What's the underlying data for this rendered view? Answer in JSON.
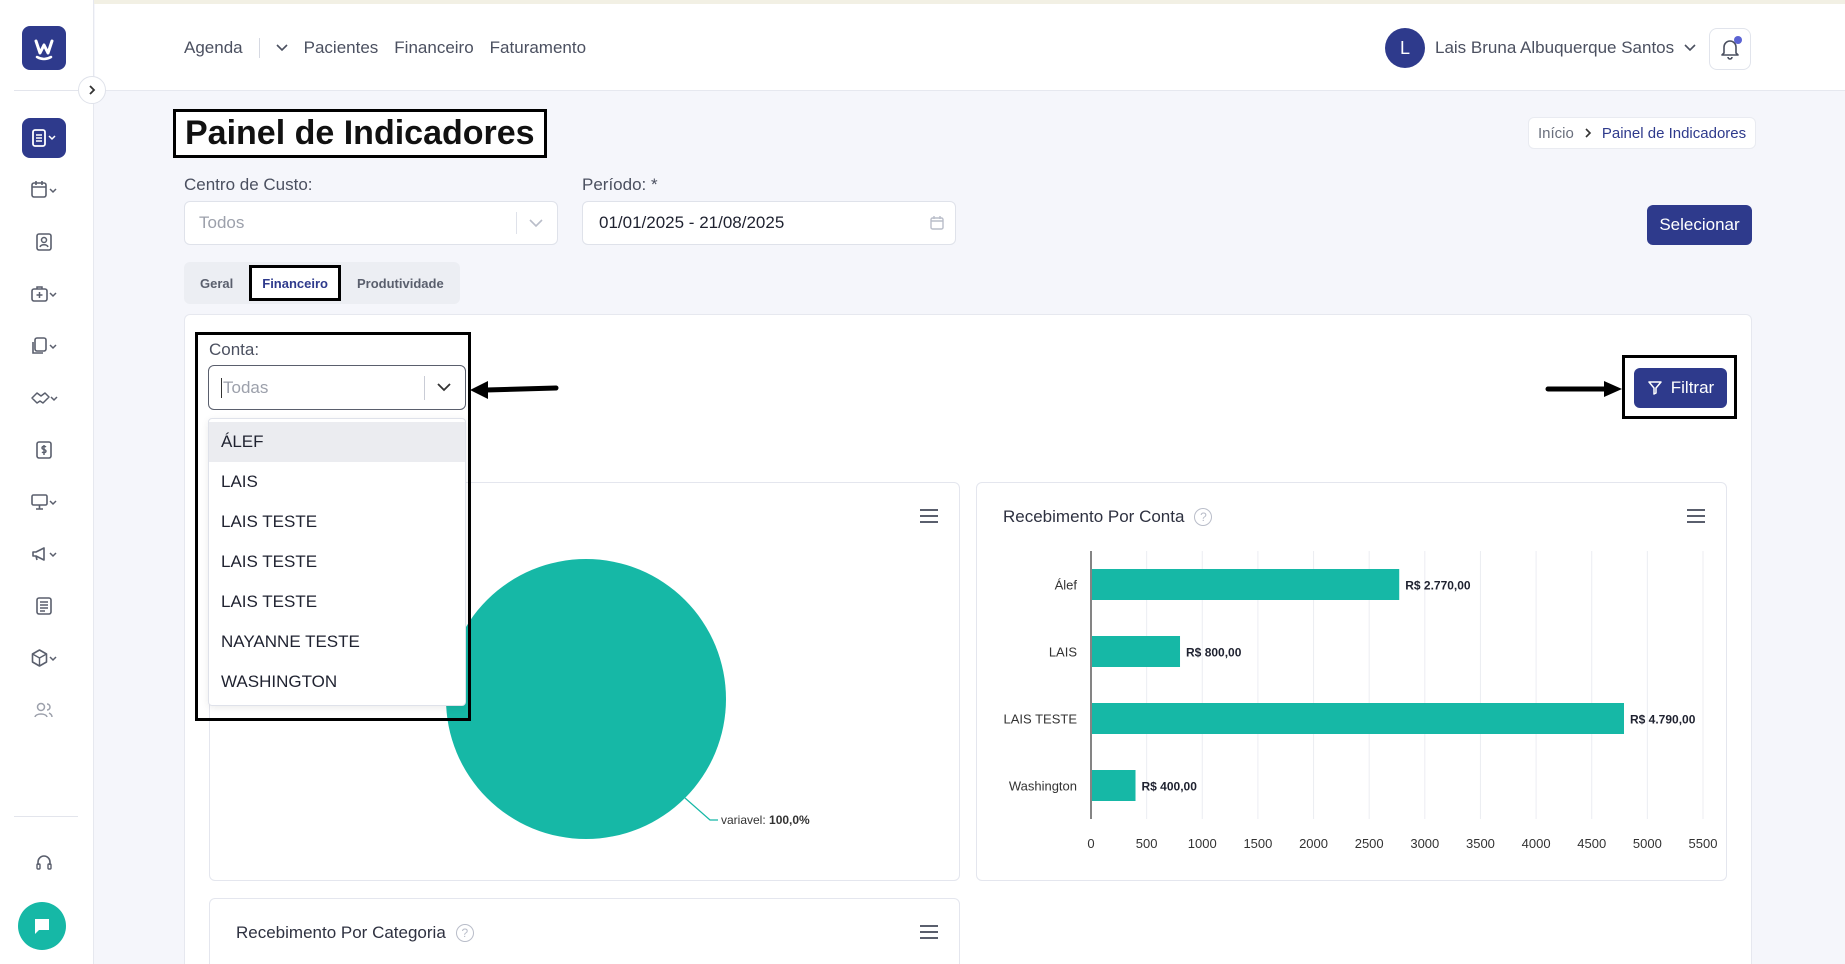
{
  "header": {
    "nav": [
      "Agenda",
      "Pacientes",
      "Financeiro",
      "Faturamento"
    ],
    "user_initial": "L",
    "user_name": "Lais Bruna Albuquerque Santos"
  },
  "page": {
    "title": "Painel de Indicadores",
    "breadcrumb": [
      "Início",
      "Painel de Indicadores"
    ]
  },
  "filters": {
    "cost_center_label": "Centro de Custo:",
    "cost_center_value": "Todos",
    "period_label": "Período: *",
    "period_value": "01/01/2025 - 21/08/2025",
    "select_button": "Selecionar"
  },
  "tabs": [
    "Geral",
    "Financeiro",
    "Produtividade"
  ],
  "active_tab": "Financeiro",
  "conta": {
    "label": "Conta:",
    "placeholder": "Todas",
    "options": [
      "ÁLEF",
      "LAIS",
      "LAIS TESTE",
      "LAIS TESTE",
      "LAIS TESTE",
      "NAYANNE TESTE",
      "WASHINGTON"
    ],
    "highlighted": "ÁLEF"
  },
  "filter_button": "Filtrar",
  "colors": {
    "primary": "#2e3a8c",
    "teal": "#16b8a6"
  },
  "cards": {
    "pie_label_name": "variavel: ",
    "pie_label_value": "100,0%",
    "category_title": "Recebimento Por Categoria"
  },
  "chart_data": [
    {
      "type": "pie",
      "labels": [
        "variavel"
      ],
      "values": [
        100.0
      ]
    },
    {
      "type": "bar",
      "title": "Recebimento Por Conta",
      "orientation": "horizontal",
      "categories": [
        "Álef",
        "LAIS",
        "LAIS TESTE",
        "Washington"
      ],
      "values": [
        2770,
        800,
        4790,
        400
      ],
      "data_labels": [
        "R$ 2.770,00",
        "R$ 800,00",
        "R$ 4.790,00",
        "R$ 400,00"
      ],
      "xticks": [
        "0",
        "500",
        "1000",
        "1500",
        "2000",
        "2500",
        "3000",
        "3500",
        "4000",
        "4500",
        "5000",
        "5500"
      ],
      "xlim": [
        0,
        5500
      ],
      "grid": true
    }
  ]
}
